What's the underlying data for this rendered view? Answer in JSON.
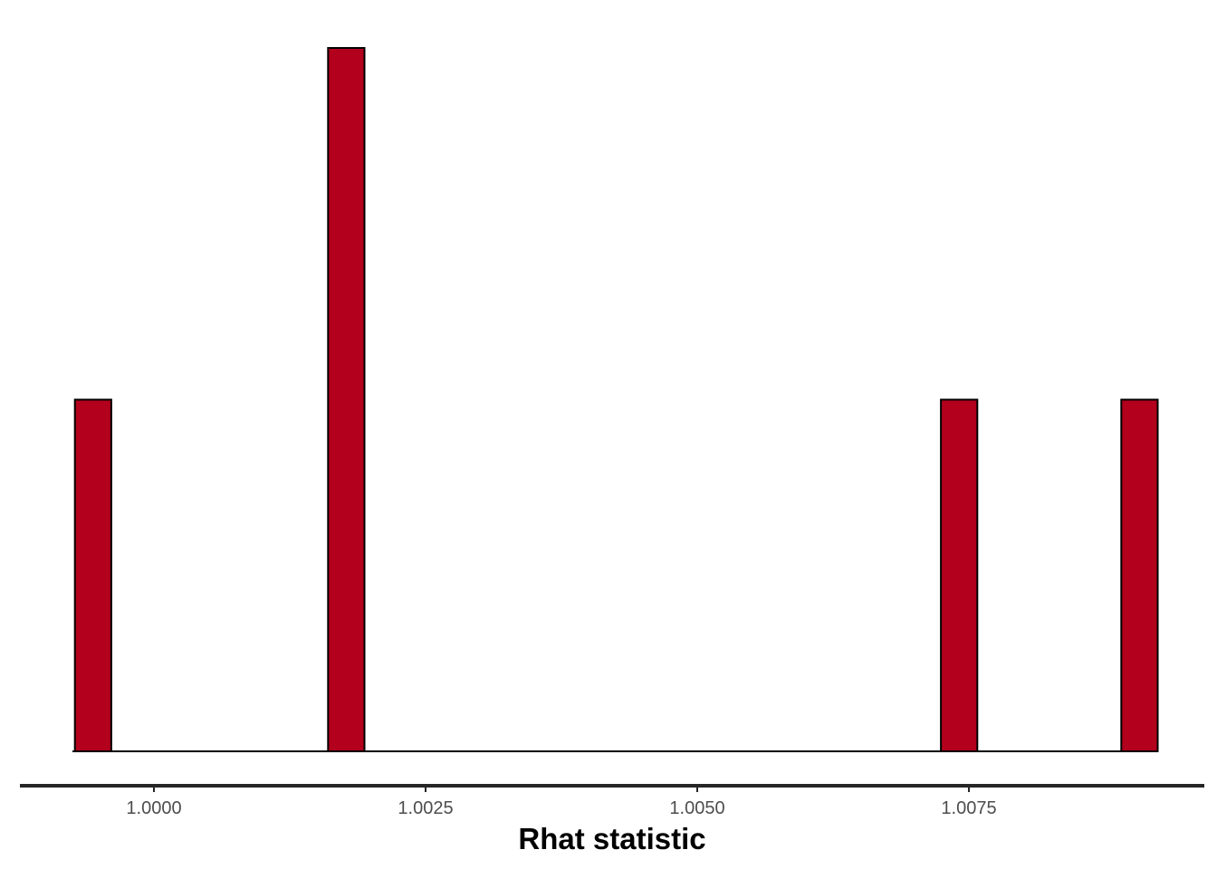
{
  "chart_data": {
    "type": "bar",
    "subtype": "histogram",
    "title": "",
    "xlabel": "Rhat statistic",
    "ylabel": "",
    "x_ticks": [
      1.0,
      1.0025,
      1.005,
      1.0075
    ],
    "x_tick_labels": [
      "1.0000",
      "1.0025",
      "1.0050",
      "1.0075"
    ],
    "xlim": [
      0.99925,
      1.0093
    ],
    "bin_width": 0.000335,
    "bins": [
      {
        "x": 0.99944,
        "count": 1
      },
      {
        "x": 1.00177,
        "count": 2
      },
      {
        "x": 1.00741,
        "count": 1
      },
      {
        "x": 1.00907,
        "count": 1
      }
    ],
    "ylim": [
      0,
      2
    ],
    "y_axis_visible": false,
    "grid": false,
    "colors": {
      "bar_fill": "#b2001d",
      "bar_outline": "#000000",
      "axis_line": "#262626",
      "tick_label": "#4d4d4d"
    }
  }
}
